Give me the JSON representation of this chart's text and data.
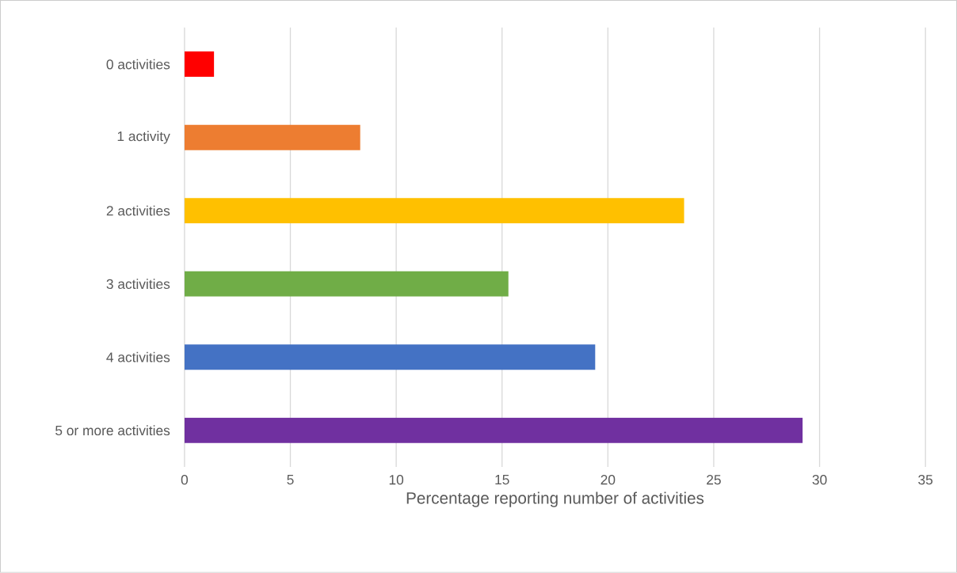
{
  "chart_data": {
    "type": "bar",
    "orientation": "horizontal",
    "xlabel": "Percentage reporting number of activities",
    "categories": [
      "0 activities",
      "1 activity",
      "2 activities",
      "3 activities",
      "4 activities",
      "5 or more activities"
    ],
    "values": [
      1.4,
      8.3,
      23.6,
      15.3,
      19.4,
      29.2
    ],
    "colors": [
      "#ff0000",
      "#ed7d31",
      "#ffc000",
      "#70ad47",
      "#4472c4",
      "#7030a0"
    ],
    "xlim": [
      0,
      35
    ],
    "xticks": [
      0,
      5,
      10,
      15,
      20,
      25,
      30,
      35
    ],
    "grid": "x"
  }
}
